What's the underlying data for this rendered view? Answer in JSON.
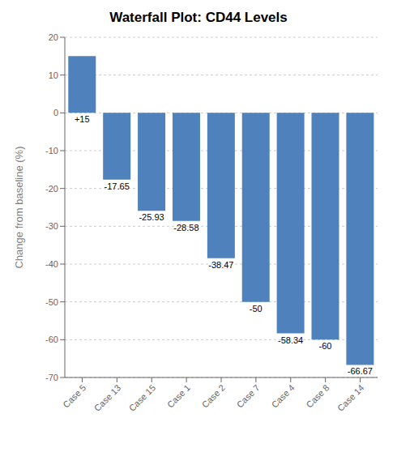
{
  "chart_data": {
    "type": "bar",
    "title": "Waterfall Plot: CD44 Levels",
    "ylabel": "Change from baseline (%)",
    "categories": [
      "Case 5",
      "Case 13",
      "Case 15",
      "Case 1",
      "Case 2",
      "Case 7",
      "Case 4",
      "Case 8",
      "Case 14"
    ],
    "values": [
      15,
      -17.65,
      -25.93,
      -28.58,
      -38.47,
      -50,
      -58.34,
      -60,
      -66.67
    ],
    "value_labels": [
      "+15",
      "-17.65",
      "-25.93",
      "-28.58",
      "-38.47",
      "-50",
      "-58.34",
      "-60",
      "-66.67"
    ],
    "data_labels": true,
    "color": "#4f81bd",
    "ylim": [
      -70,
      20
    ],
    "yticks": [
      -70,
      -60,
      -50,
      -40,
      -30,
      -20,
      -10,
      0,
      10,
      20
    ],
    "grid": true
  }
}
